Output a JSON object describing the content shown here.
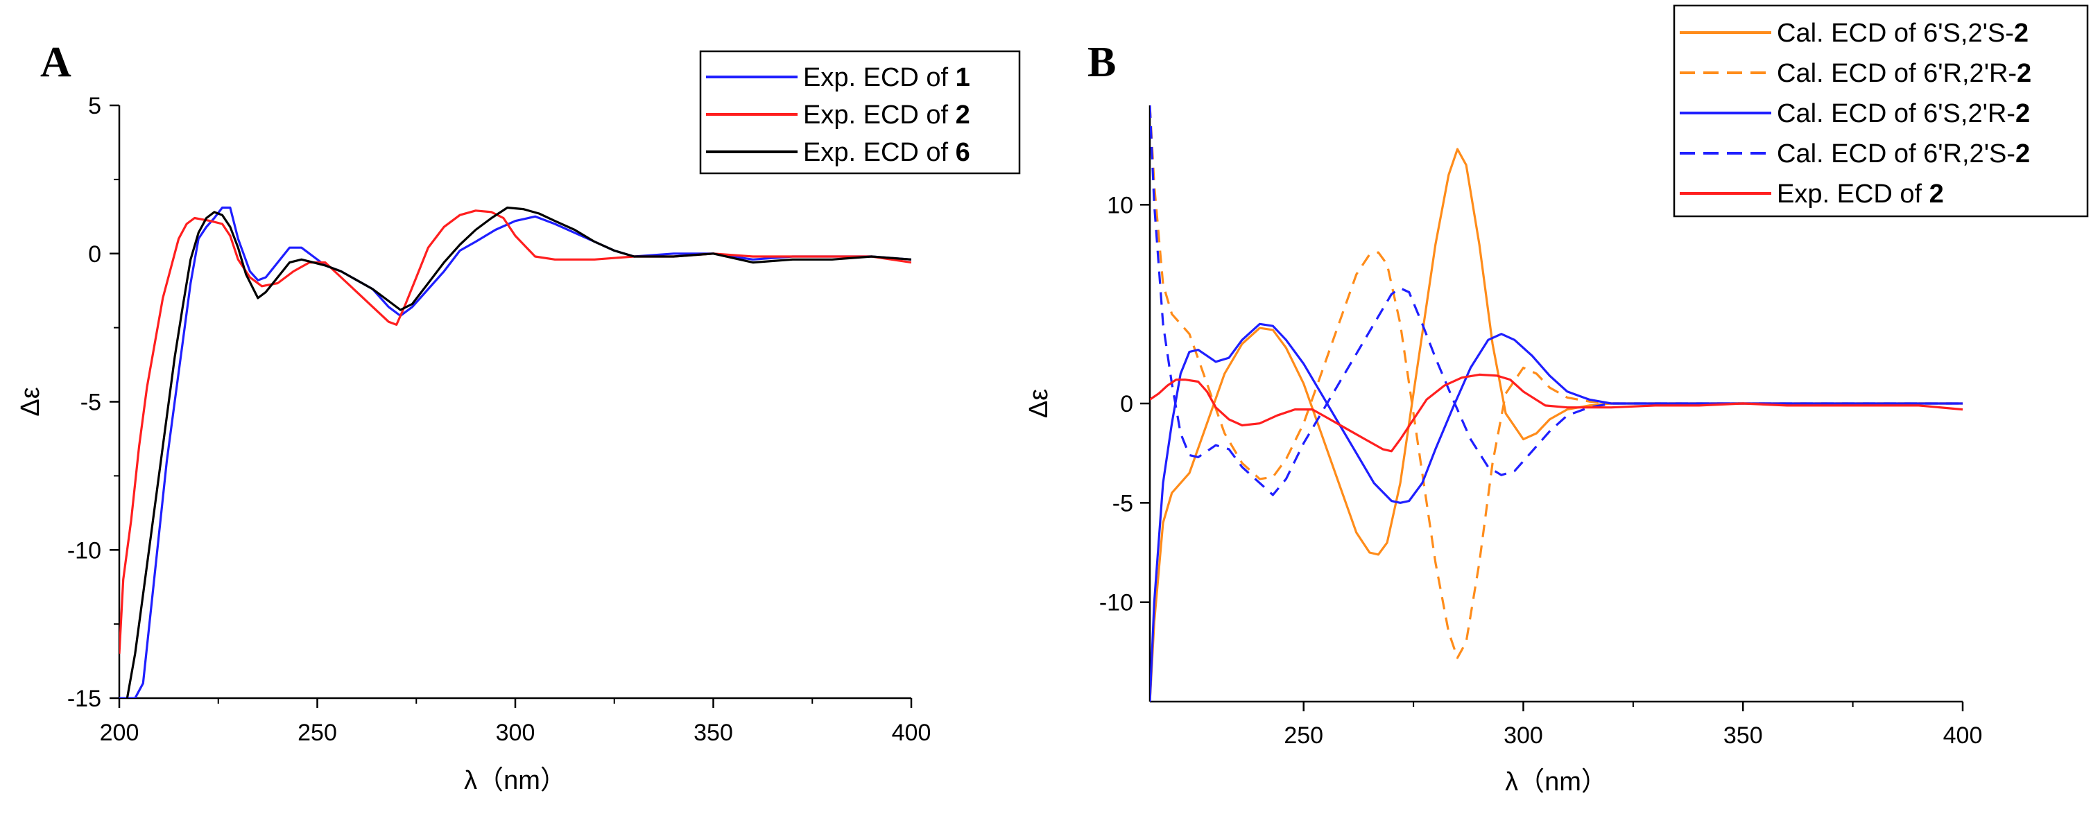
{
  "chart_data": [
    {
      "panel": "A",
      "type": "line",
      "xlabel": "λ（nm）",
      "ylabel": "Δε",
      "xlim": [
        200,
        400
      ],
      "ylim": [
        -15,
        5
      ],
      "xticks": [
        200,
        250,
        300,
        350,
        400
      ],
      "yticks": [
        5,
        0,
        -5,
        -10,
        -15
      ],
      "legend_position": "top-right",
      "series": [
        {
          "name": "Exp. ECD of ",
          "compound": "1",
          "color": "#1f1fff",
          "dash": "solid",
          "x": [
            200,
            202,
            204,
            206,
            208,
            210,
            212,
            214,
            216,
            218,
            220,
            222,
            224,
            226,
            228,
            230,
            233,
            235,
            237,
            240,
            243,
            246,
            249,
            252,
            256,
            260,
            264,
            268,
            271,
            274,
            278,
            282,
            286,
            290,
            295,
            300,
            305,
            310,
            315,
            320,
            325,
            330,
            340,
            350,
            360,
            370,
            380,
            390,
            400
          ],
          "y": [
            -15,
            -15,
            -15,
            -14.5,
            -12,
            -9.5,
            -7,
            -5,
            -3,
            -1,
            0.5,
            0.9,
            1.2,
            1.55,
            1.55,
            0.5,
            -0.6,
            -0.9,
            -0.8,
            -0.3,
            0.2,
            0.2,
            -0.1,
            -0.4,
            -0.6,
            -0.9,
            -1.2,
            -1.8,
            -2.1,
            -1.8,
            -1.2,
            -0.6,
            0.1,
            0.4,
            0.8,
            1.1,
            1.25,
            1.0,
            0.7,
            0.4,
            0.1,
            -0.1,
            0,
            0,
            -0.2,
            -0.1,
            -0.1,
            -0.1,
            -0.2
          ]
        },
        {
          "name": "Exp. ECD of ",
          "compound": "2",
          "color": "#ff1f1f",
          "dash": "solid",
          "x": [
            200,
            201,
            203,
            205,
            207,
            209,
            211,
            213,
            215,
            217,
            219,
            221,
            223,
            226,
            228,
            230,
            233,
            236,
            240,
            244,
            248,
            252,
            256,
            260,
            264,
            268,
            270,
            272,
            275,
            278,
            282,
            286,
            290,
            294,
            297,
            300,
            305,
            310,
            320,
            330,
            340,
            350,
            360,
            370,
            380,
            390,
            400
          ],
          "y": [
            -13.5,
            -11,
            -9,
            -6.5,
            -4.5,
            -3,
            -1.5,
            -0.5,
            0.5,
            1.0,
            1.2,
            1.15,
            1.1,
            1.0,
            0.6,
            -0.2,
            -0.8,
            -1.1,
            -1.0,
            -0.6,
            -0.3,
            -0.3,
            -0.8,
            -1.3,
            -1.8,
            -2.3,
            -2.4,
            -1.8,
            -0.8,
            0.2,
            0.9,
            1.3,
            1.45,
            1.4,
            1.2,
            0.6,
            -0.1,
            -0.2,
            -0.2,
            -0.1,
            -0.1,
            0,
            -0.1,
            -0.1,
            -0.1,
            -0.1,
            -0.3
          ]
        },
        {
          "name": "Exp. ECD of ",
          "compound": "6",
          "color": "#000000",
          "dash": "solid",
          "x": [
            202,
            204,
            206,
            208,
            210,
            212,
            214,
            216,
            218,
            220,
            222,
            224,
            226,
            228,
            230,
            232,
            235,
            237,
            240,
            243,
            246,
            249,
            252,
            256,
            260,
            264,
            268,
            271,
            274,
            278,
            282,
            286,
            290,
            294,
            298,
            302,
            306,
            310,
            315,
            320,
            325,
            330,
            340,
            350,
            360,
            370,
            380,
            390,
            400
          ],
          "y": [
            -15,
            -13.5,
            -11.5,
            -9.5,
            -7.5,
            -5.5,
            -3.5,
            -1.8,
            -0.2,
            0.7,
            1.2,
            1.4,
            1.3,
            0.9,
            0.2,
            -0.7,
            -1.5,
            -1.3,
            -0.8,
            -0.3,
            -0.2,
            -0.3,
            -0.4,
            -0.6,
            -0.9,
            -1.2,
            -1.6,
            -1.9,
            -1.7,
            -1.0,
            -0.3,
            0.3,
            0.8,
            1.2,
            1.55,
            1.5,
            1.35,
            1.1,
            0.8,
            0.4,
            0.1,
            -0.1,
            -0.1,
            0,
            -0.3,
            -0.2,
            -0.2,
            -0.1,
            -0.2
          ]
        }
      ]
    },
    {
      "panel": "B",
      "type": "line",
      "xlabel": "λ（nm）",
      "ylabel": "Δε",
      "xlim": [
        215,
        400
      ],
      "ylim": [
        -15,
        15
      ],
      "xticks": [
        250,
        300,
        350,
        400
      ],
      "yticks": [
        10,
        0,
        -5,
        -10
      ],
      "ytick_labels": [
        "10",
        "0",
        "-5",
        "-10"
      ],
      "ytick_values": [
        10,
        0,
        -5,
        -10
      ],
      "legend_position": "top-right",
      "series": [
        {
          "name": "Cal. ECD of 6'S,2'S-",
          "compound": "2",
          "color": "#ff8c1a",
          "dash": "solid",
          "x": [
            215,
            216,
            218,
            220,
            224,
            228,
            232,
            236,
            240,
            243,
            246,
            250,
            254,
            258,
            262,
            265,
            267,
            269,
            272,
            276,
            280,
            283,
            285,
            287,
            290,
            293,
            296,
            300,
            303,
            306,
            310,
            315,
            320,
            330,
            340,
            350,
            360,
            380,
            400
          ],
          "y": [
            -15,
            -11,
            -6,
            -4.5,
            -3.5,
            -1,
            1.5,
            3,
            3.8,
            3.7,
            2.8,
            1.0,
            -1.5,
            -4.0,
            -6.5,
            -7.5,
            -7.6,
            -7.0,
            -4.0,
            2.0,
            8.0,
            11.5,
            12.8,
            12.0,
            8.0,
            3.0,
            -0.5,
            -1.8,
            -1.5,
            -0.8,
            -0.3,
            -0.1,
            0,
            0,
            0,
            0,
            0,
            0,
            0
          ]
        },
        {
          "name": "Cal. ECD of 6'R,2'R-",
          "compound": "2",
          "color": "#ff8c1a",
          "dash": "dashed",
          "x": [
            215,
            216,
            218,
            220,
            224,
            228,
            232,
            236,
            240,
            243,
            246,
            250,
            254,
            258,
            262,
            265,
            267,
            269,
            272,
            276,
            280,
            283,
            285,
            287,
            290,
            293,
            296,
            300,
            303,
            306,
            310,
            315,
            320,
            330,
            340,
            350,
            360,
            380,
            400
          ],
          "y": [
            15,
            11,
            6,
            4.5,
            3.5,
            1,
            -1.5,
            -3,
            -3.8,
            -3.7,
            -2.8,
            -1.0,
            1.5,
            4.0,
            6.5,
            7.5,
            7.6,
            7.0,
            4.0,
            -2.0,
            -8.0,
            -11.5,
            -12.8,
            -12.0,
            -8.0,
            -3.0,
            0.5,
            1.8,
            1.5,
            0.8,
            0.3,
            0.1,
            0,
            0,
            0,
            0,
            0,
            0,
            0
          ]
        },
        {
          "name": "Cal. ECD of 6'S,2'R-",
          "compound": "2",
          "color": "#1f1fff",
          "dash": "solid",
          "x": [
            215,
            216,
            218,
            220,
            222,
            224,
            226,
            228,
            230,
            233,
            236,
            240,
            243,
            246,
            250,
            254,
            258,
            262,
            266,
            270,
            272,
            274,
            277,
            280,
            284,
            288,
            292,
            295,
            298,
            302,
            306,
            310,
            315,
            320,
            330,
            340,
            360,
            380,
            400
          ],
          "y": [
            -15,
            -10,
            -4,
            -1.0,
            1.5,
            2.6,
            2.7,
            2.4,
            2.1,
            2.3,
            3.2,
            4.0,
            3.9,
            3.2,
            2.0,
            0.5,
            -1.0,
            -2.5,
            -4.0,
            -4.9,
            -5.0,
            -4.9,
            -4.0,
            -2.3,
            -0.2,
            1.8,
            3.2,
            3.5,
            3.2,
            2.4,
            1.4,
            0.6,
            0.2,
            0,
            0,
            0,
            0,
            0,
            0
          ]
        },
        {
          "name": "Cal. ECD of 6'R,2'S-",
          "compound": "2",
          "color": "#1f1fff",
          "dash": "dashed",
          "x": [
            215,
            216,
            218,
            220,
            222,
            224,
            226,
            228,
            230,
            233,
            236,
            240,
            243,
            246,
            250,
            254,
            258,
            262,
            266,
            270,
            272,
            274,
            277,
            280,
            284,
            288,
            292,
            295,
            298,
            302,
            306,
            310,
            315,
            320,
            330,
            340,
            360,
            380,
            400
          ],
          "y": [
            15,
            10,
            4,
            1.0,
            -1.5,
            -2.6,
            -2.7,
            -2.4,
            -2.1,
            -2.3,
            -3.2,
            -4.0,
            -4.6,
            -3.8,
            -2.0,
            -0.5,
            1.0,
            2.5,
            4.0,
            5.5,
            5.8,
            5.6,
            4.0,
            2.3,
            0.2,
            -1.8,
            -3.2,
            -3.6,
            -3.4,
            -2.4,
            -1.4,
            -0.6,
            -0.2,
            0,
            0,
            0,
            0,
            0,
            0
          ]
        },
        {
          "name": "Exp. ECD of ",
          "compound": "2",
          "color": "#ff1f1f",
          "dash": "solid",
          "x": [
            215,
            217,
            219,
            221,
            223,
            226,
            228,
            230,
            233,
            236,
            240,
            244,
            248,
            252,
            256,
            260,
            264,
            268,
            270,
            272,
            275,
            278,
            282,
            286,
            290,
            294,
            297,
            300,
            305,
            310,
            320,
            330,
            340,
            350,
            360,
            370,
            380,
            390,
            400
          ],
          "y": [
            0.2,
            0.5,
            0.9,
            1.2,
            1.2,
            1.1,
            0.6,
            -0.2,
            -0.8,
            -1.1,
            -1.0,
            -0.6,
            -0.3,
            -0.3,
            -0.8,
            -1.3,
            -1.8,
            -2.3,
            -2.4,
            -1.8,
            -0.8,
            0.2,
            0.9,
            1.3,
            1.45,
            1.4,
            1.2,
            0.6,
            -0.1,
            -0.2,
            -0.2,
            -0.1,
            -0.1,
            0,
            -0.1,
            -0.1,
            -0.1,
            -0.1,
            -0.3
          ]
        }
      ]
    }
  ]
}
